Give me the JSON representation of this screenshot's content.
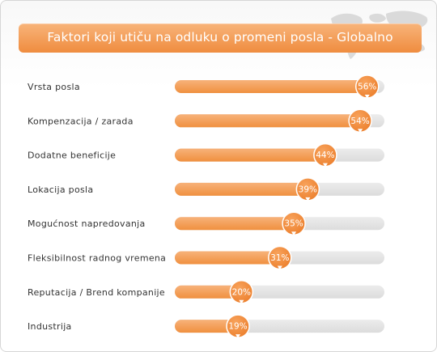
{
  "chart_data": {
    "type": "bar",
    "orientation": "horizontal",
    "title": "Faktori koji utiču na odluku o promeni posla - Globalno",
    "categories": [
      "Vrsta posla",
      "Kompenzacija / zarada",
      "Dodatne beneficije",
      "Lokacija posla",
      "Mogućnost napredovanja",
      "Fleksibilnost radnog vremena",
      "Reputacija / Brend kompanije",
      "Industrija"
    ],
    "values": [
      56,
      54,
      44,
      39,
      35,
      31,
      20,
      19
    ],
    "value_labels": [
      "56%",
      "54%",
      "44%",
      "39%",
      "35%",
      "31%",
      "20%",
      "19%"
    ],
    "xlim": [
      0,
      60
    ],
    "unit": "%",
    "grid": false,
    "legend": "none"
  },
  "colors": {
    "title_bar": "#ef8c3f",
    "bar_fill": "#f0903f",
    "bar_track": "#dcdcdc",
    "marker": "#ec7f2c"
  },
  "icons": {
    "background_map": "world-map-icon",
    "value_marker": "callout-bubble-icon"
  }
}
